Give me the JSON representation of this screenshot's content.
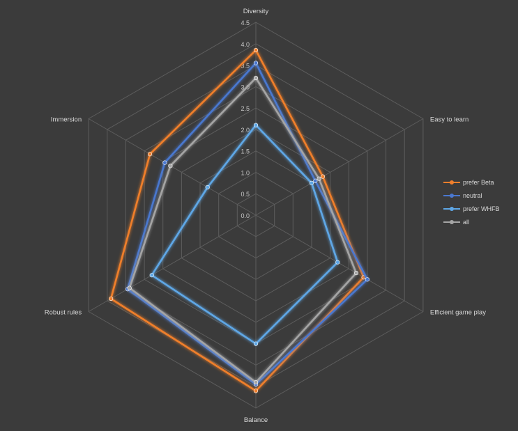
{
  "chart_data": {
    "type": "radar",
    "axes": [
      "Diversity",
      "Easy to learn",
      "Efficient game play",
      "Balance",
      "Robust rules",
      "Immersion"
    ],
    "rlim": [
      0,
      4.5
    ],
    "ticks": [
      "0.0",
      "0.5",
      "1.0",
      "1.5",
      "2.0",
      "2.5",
      "3.0",
      "3.5",
      "4.0",
      "4.5"
    ],
    "grid": true,
    "legend_position": "right",
    "series": [
      {
        "name": "prefer Beta",
        "color": "#f07f2c",
        "values": [
          3.85,
          1.8,
          2.9,
          4.1,
          3.9,
          2.85
        ]
      },
      {
        "name": "neutral",
        "color": "#4a78d0",
        "values": [
          3.55,
          1.6,
          3.0,
          3.95,
          3.45,
          2.45
        ]
      },
      {
        "name": "prefer WHFB",
        "color": "#5ea7e6",
        "values": [
          2.1,
          1.5,
          2.2,
          3.0,
          2.8,
          1.3
        ]
      },
      {
        "name": "all",
        "color": "#a5a5a5",
        "values": [
          3.2,
          1.7,
          2.7,
          3.9,
          3.4,
          2.3
        ]
      }
    ]
  }
}
